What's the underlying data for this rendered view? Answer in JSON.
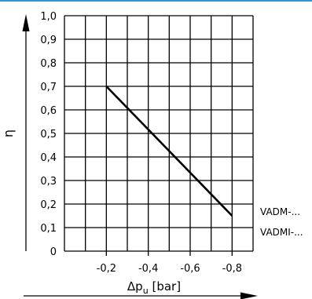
{
  "chart_data": {
    "type": "line",
    "xlabel": "Δp",
    "xlabel_sub": "u",
    "xlabel_unit": " [bar]",
    "ylabel": "η",
    "x_ticks": [
      "-0,2",
      "-0,4",
      "-0,6",
      "-0,8"
    ],
    "x_tick_values": [
      -0.2,
      -0.4,
      -0.6,
      -0.8
    ],
    "y_ticks": [
      "0",
      "0,1",
      "0,2",
      "0,3",
      "0,4",
      "0,5",
      "0,6",
      "0,7",
      "0,8",
      "0,9",
      "1,0"
    ],
    "xlim": [
      0,
      -0.9
    ],
    "ylim": [
      0,
      1.0
    ],
    "grid": true,
    "series": [
      {
        "x": [
          -0.2,
          -0.8
        ],
        "y": [
          0.7,
          0.15
        ]
      }
    ],
    "annotations": [
      "VADM-...",
      "VADMI-..."
    ],
    "colors": {
      "line": "#000000",
      "grid": "#000000",
      "accent_rule": "#2f97d8"
    }
  }
}
